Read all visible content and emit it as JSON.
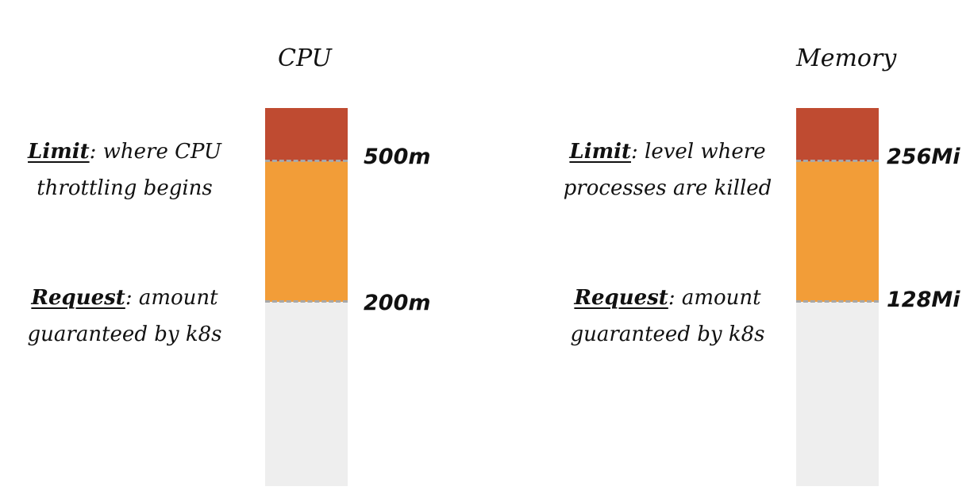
{
  "panels": [
    {
      "title": "CPU",
      "limit": {
        "term": "Limit",
        "separator": ":",
        "line1_rest": " where CPU",
        "line2": "throttling begins",
        "value": "500m"
      },
      "request": {
        "term": "Request",
        "separator": ":",
        "line1_rest": " amount",
        "line2": "guaranteed by k8s",
        "value": "200m"
      }
    },
    {
      "title": "Memory",
      "limit": {
        "term": "Limit",
        "separator": ":",
        "line1_rest": " level where",
        "line2": "processes are killed",
        "value": "256Mi"
      },
      "request": {
        "term": "Request",
        "separator": ":",
        "line1_rest": " amount",
        "line2": "guaranteed by k8s",
        "value": "128Mi"
      }
    }
  ],
  "colors": {
    "limit_segment": "#bf4b31",
    "request_segment": "#f29d38",
    "unused_segment": "#eeeeee",
    "threshold_line": "#a8a8a8"
  }
}
